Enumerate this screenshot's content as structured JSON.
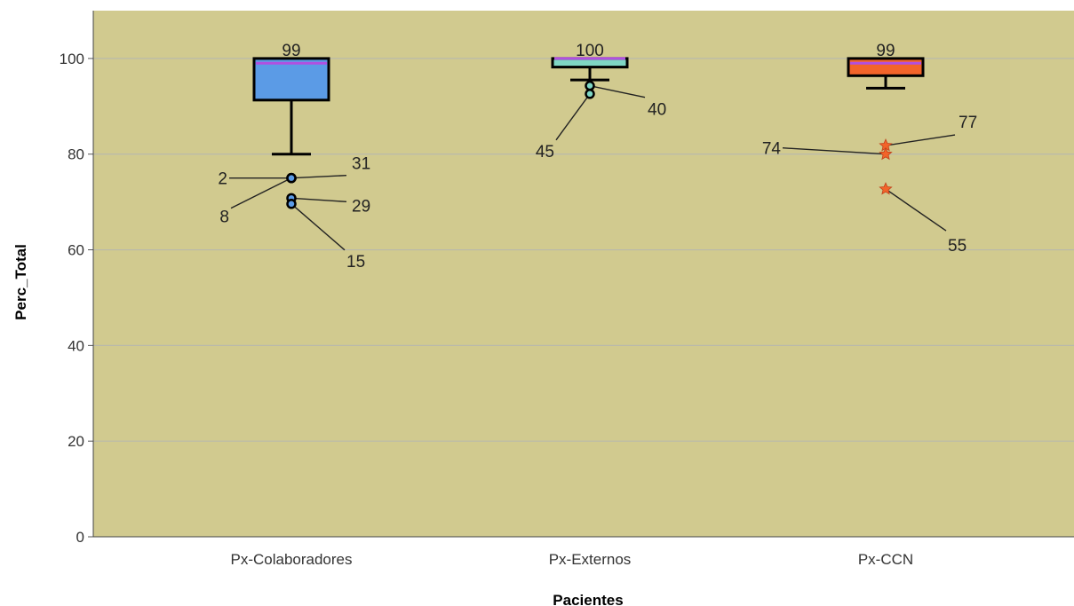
{
  "chart_data": {
    "type": "boxplot",
    "title": "",
    "xlabel": "Pacientes",
    "ylabel": "Perc_Total",
    "ylim": [
      0,
      110
    ],
    "yticks": [
      0,
      20,
      40,
      60,
      80,
      100
    ],
    "grid": true,
    "colors": {
      "plot_background": "#d1ca8f",
      "gridline": "#b9b9ab",
      "median": "#b14fe0",
      "whisker": "#000000"
    },
    "categories": [
      "Px-Colaboradores",
      "Px-Externos",
      "Px-CCN"
    ],
    "boxes": [
      {
        "category": "Px-Colaboradores",
        "color": "#5b9be6",
        "whisker_low": 80,
        "q1": 91.3,
        "median": 99,
        "q3": 100,
        "whisker_high": 100,
        "median_label": "99",
        "outlier_marker": "circle",
        "outlier_color": "#5b9be6",
        "outliers": [
          {
            "value": 75.0,
            "label": "2"
          },
          {
            "value": 75.0,
            "label": "8"
          },
          {
            "value": 75.0,
            "label": "31"
          },
          {
            "value": 70.8,
            "label": "29"
          },
          {
            "value": 69.6,
            "label": "15"
          }
        ]
      },
      {
        "category": "Px-Externos",
        "color": "#7fd6c4",
        "whisker_low": 95.5,
        "q1": 98.2,
        "median": 100,
        "q3": 100,
        "whisker_high": 100,
        "median_label": "100",
        "outlier_marker": "circle",
        "outlier_color": "#7fd6c4",
        "outliers": [
          {
            "value": 94.3,
            "label": "40"
          },
          {
            "value": 92.6,
            "label": "45"
          }
        ]
      },
      {
        "category": "Px-CCN",
        "color": "#f2642a",
        "whisker_low": 93.8,
        "q1": 96.4,
        "median": 99,
        "q3": 100,
        "whisker_high": 100,
        "median_label": "99",
        "outlier_marker": "star",
        "outlier_color": "#f2642a",
        "outliers": [
          {
            "value": 81.8,
            "label": "77"
          },
          {
            "value": 80.0,
            "label": "74"
          },
          {
            "value": 72.7,
            "label": "55"
          }
        ]
      }
    ]
  }
}
